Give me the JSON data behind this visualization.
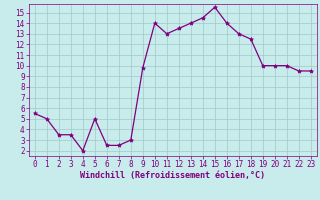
{
  "x": [
    0,
    1,
    2,
    3,
    4,
    5,
    6,
    7,
    8,
    9,
    10,
    11,
    12,
    13,
    14,
    15,
    16,
    17,
    18,
    19,
    20,
    21,
    22,
    23
  ],
  "y": [
    5.5,
    5.0,
    3.5,
    3.5,
    2.0,
    5.0,
    2.5,
    2.5,
    3.0,
    9.8,
    14.0,
    13.0,
    13.5,
    14.0,
    14.5,
    15.5,
    14.0,
    13.0,
    12.5,
    10.0,
    10.0,
    10.0,
    9.5,
    9.5
  ],
  "line_color": "#800080",
  "marker": "*",
  "marker_size": 3,
  "bg_color": "#c8ecec",
  "grid_color": "#a0c8c8",
  "tick_color": "#800080",
  "label_color": "#800080",
  "spine_color": "#800080",
  "xlabel": "Windchill (Refroidissement éolien,°C)",
  "xlim": [
    -0.5,
    23.5
  ],
  "ylim": [
    1.5,
    15.8
  ],
  "yticks": [
    2,
    3,
    4,
    5,
    6,
    7,
    8,
    9,
    10,
    11,
    12,
    13,
    14,
    15
  ],
  "xticks": [
    0,
    1,
    2,
    3,
    4,
    5,
    6,
    7,
    8,
    9,
    10,
    11,
    12,
    13,
    14,
    15,
    16,
    17,
    18,
    19,
    20,
    21,
    22,
    23
  ],
  "tick_fontsize": 5.5,
  "xlabel_fontsize": 6.0,
  "linewidth": 0.9
}
